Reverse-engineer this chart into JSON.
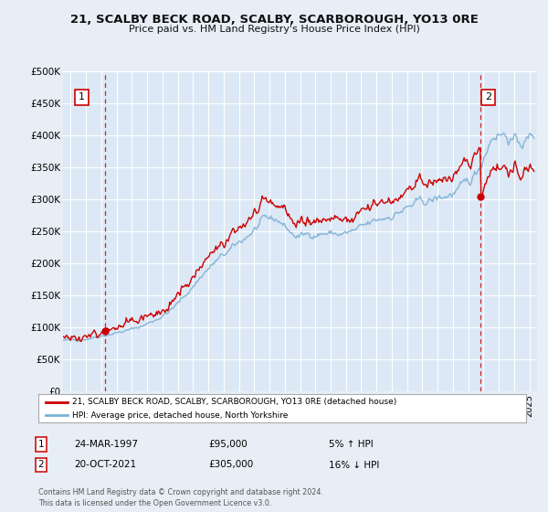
{
  "title": "21, SCALBY BECK ROAD, SCALBY, SCARBOROUGH, YO13 0RE",
  "subtitle": "Price paid vs. HM Land Registry's House Price Index (HPI)",
  "ylabel_ticks": [
    "£0",
    "£50K",
    "£100K",
    "£150K",
    "£200K",
    "£250K",
    "£300K",
    "£350K",
    "£400K",
    "£450K",
    "£500K"
  ],
  "ytick_vals": [
    0,
    50000,
    100000,
    150000,
    200000,
    250000,
    300000,
    350000,
    400000,
    450000,
    500000
  ],
  "xlim_start": 1994.5,
  "xlim_end": 2025.5,
  "ylim": [
    0,
    500000
  ],
  "background_color": "#e8eef5",
  "plot_bg_color": "#dce8f5",
  "grid_color": "#ffffff",
  "hpi_color": "#7ab0d4",
  "price_color": "#cc0000",
  "marker1_date": 1997.23,
  "marker1_price": 95000,
  "marker1_label": "1",
  "marker2_date": 2021.8,
  "marker2_price": 305000,
  "marker2_label": "2",
  "legend_entry1": "21, SCALBY BECK ROAD, SCALBY, SCARBOROUGH, YO13 0RE (detached house)",
  "legend_entry2": "HPI: Average price, detached house, North Yorkshire",
  "note1_num": "1",
  "note1_date": "24-MAR-1997",
  "note1_price": "£95,000",
  "note1_hpi": "5% ↑ HPI",
  "note2_num": "2",
  "note2_date": "20-OCT-2021",
  "note2_price": "£305,000",
  "note2_hpi": "16% ↓ HPI",
  "footer": "Contains HM Land Registry data © Crown copyright and database right 2024.\nThis data is licensed under the Open Government Licence v3.0."
}
